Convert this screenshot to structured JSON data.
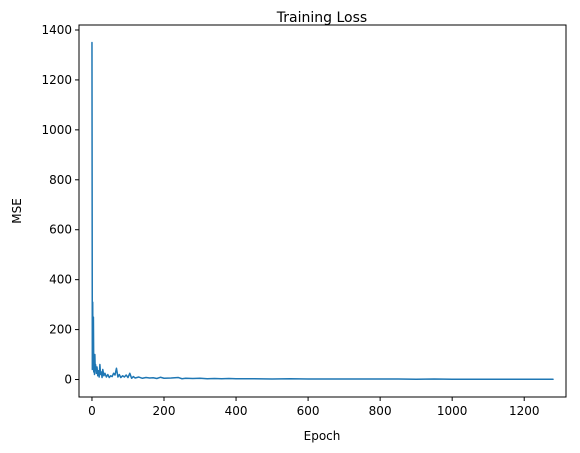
{
  "chart_data": {
    "type": "line",
    "title": "Training Loss",
    "xlabel": "Epoch",
    "ylabel": "MSE",
    "xlim": [
      -36,
      1316
    ],
    "ylim": [
      -70,
      1420
    ],
    "xticks": [
      0,
      200,
      400,
      600,
      800,
      1000,
      1200
    ],
    "yticks": [
      0,
      200,
      400,
      600,
      800,
      1000,
      1200,
      1400
    ],
    "grid": false,
    "series": [
      {
        "color": "#1f77b4",
        "x": [
          0,
          1,
          2,
          3,
          4,
          5,
          6,
          7,
          8,
          9,
          10,
          12,
          14,
          16,
          18,
          20,
          22,
          24,
          26,
          28,
          30,
          33,
          36,
          40,
          44,
          48,
          52,
          56,
          60,
          64,
          68,
          72,
          76,
          80,
          85,
          90,
          95,
          100,
          105,
          110,
          115,
          120,
          130,
          140,
          150,
          160,
          170,
          180,
          190,
          200,
          220,
          240,
          250,
          260,
          280,
          300,
          320,
          340,
          360,
          380,
          400,
          450,
          500,
          550,
          600,
          650,
          700,
          750,
          800,
          850,
          900,
          950,
          1000,
          1050,
          1100,
          1150,
          1200,
          1250,
          1280
        ],
        "y": [
          1350,
          40,
          310,
          60,
          250,
          30,
          95,
          20,
          100,
          40,
          60,
          25,
          50,
          15,
          35,
          10,
          60,
          20,
          30,
          8,
          40,
          15,
          25,
          10,
          20,
          8,
          15,
          12,
          25,
          18,
          45,
          10,
          20,
          8,
          15,
          10,
          18,
          8,
          25,
          5,
          12,
          6,
          10,
          5,
          8,
          6,
          7,
          4,
          9,
          5,
          6,
          8,
          3,
          5,
          4,
          5,
          3,
          4,
          3,
          4,
          3,
          3,
          2,
          3,
          2,
          2,
          2,
          2,
          2,
          2,
          1,
          2,
          1,
          1,
          1,
          1,
          1,
          1,
          1
        ]
      }
    ]
  }
}
